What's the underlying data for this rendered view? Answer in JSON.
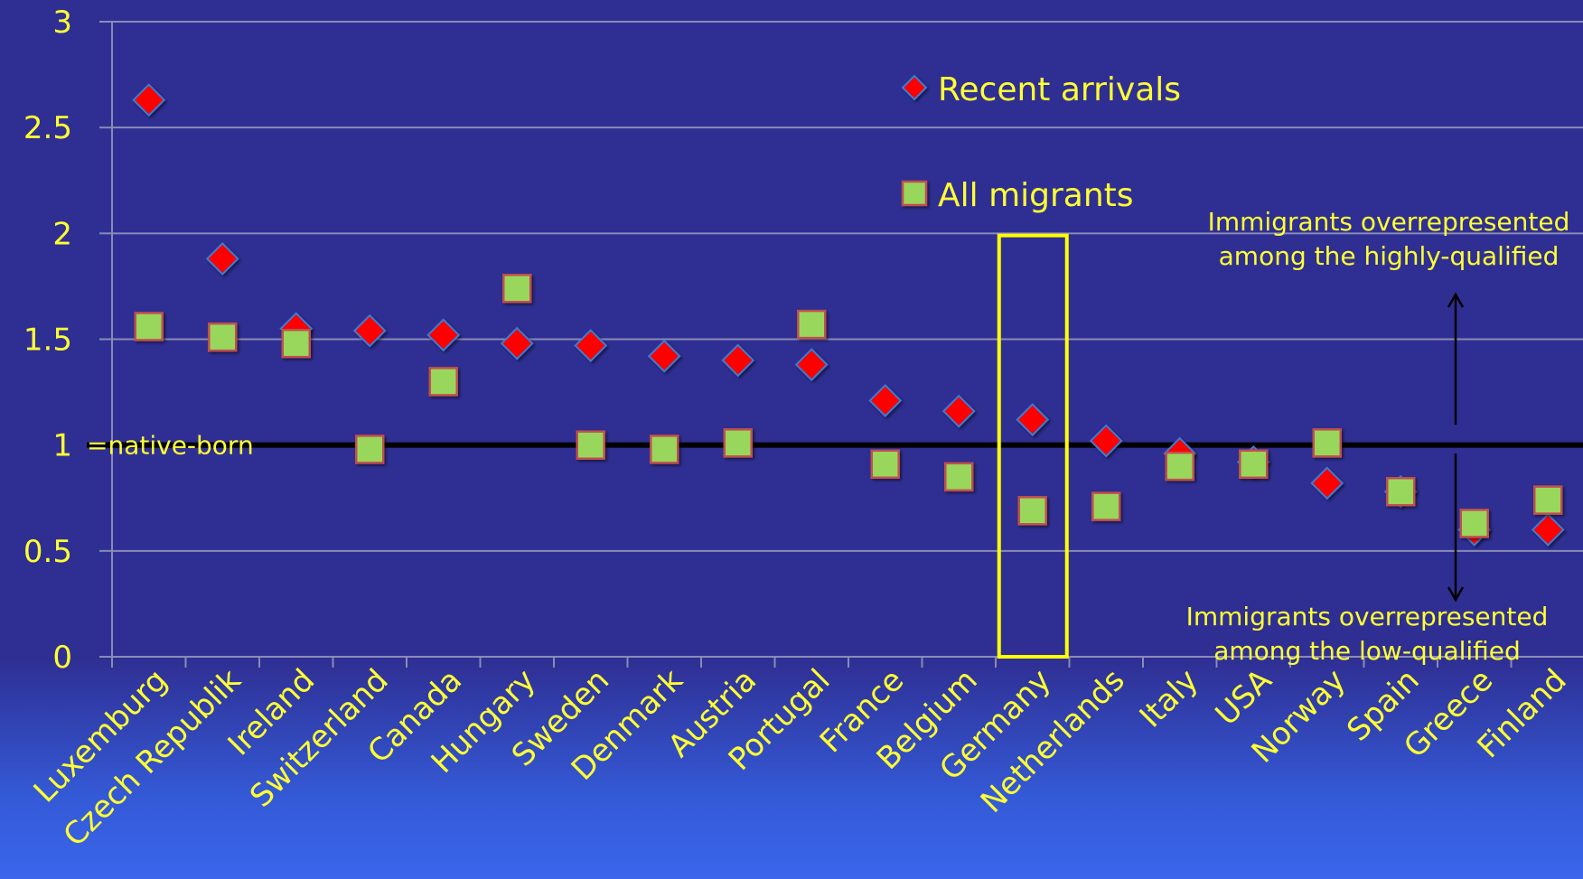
{
  "chart_data": {
    "type": "scatter",
    "categories": [
      "Luxemburg",
      "Czech Republik",
      "Ireland",
      "Switzerland",
      "Canada",
      "Hungary",
      "Sweden",
      "Denmark",
      "Austria",
      "Portugal",
      "France",
      "Belgium",
      "Germany",
      "Netherlands",
      "Italy",
      "USA",
      "Norway",
      "Spain",
      "Greece",
      "Finland"
    ],
    "series": [
      {
        "name": "Recent arrivals",
        "marker": "diamond",
        "color": "#ff0000",
        "values": [
          2.63,
          1.88,
          1.55,
          1.54,
          1.52,
          1.48,
          1.47,
          1.42,
          1.4,
          1.38,
          1.21,
          1.16,
          1.12,
          1.02,
          0.96,
          0.92,
          0.82,
          0.78,
          0.6,
          0.6
        ]
      },
      {
        "name": "All migrants",
        "marker": "square",
        "color": "#99d65c",
        "values": [
          1.56,
          1.51,
          1.48,
          0.98,
          1.3,
          1.74,
          1.0,
          0.98,
          1.01,
          1.57,
          0.91,
          0.85,
          0.69,
          0.71,
          0.9,
          0.91,
          1.01,
          0.78,
          0.63,
          0.74
        ]
      }
    ],
    "ylim": [
      0,
      3
    ],
    "yticks": [
      "0",
      "0.5",
      "1",
      "1.5",
      "2",
      "2.5",
      "3"
    ],
    "grid": true,
    "legend_position": "top-center",
    "reference_line": {
      "value": 1,
      "label": "=native-born"
    },
    "highlight_category": "Germany",
    "annotations": {
      "upper": [
        "Immigrants overrepresented",
        "among the highly-qualified"
      ],
      "lower": [
        "Immigrants overrepresented",
        "among the low-qualified"
      ]
    },
    "colors": {
      "background": "#2f2f93",
      "text": "#ffff33",
      "grid": "#8a8ab8",
      "highlight_box": "#ffff00",
      "reference_line": "#000000"
    }
  }
}
